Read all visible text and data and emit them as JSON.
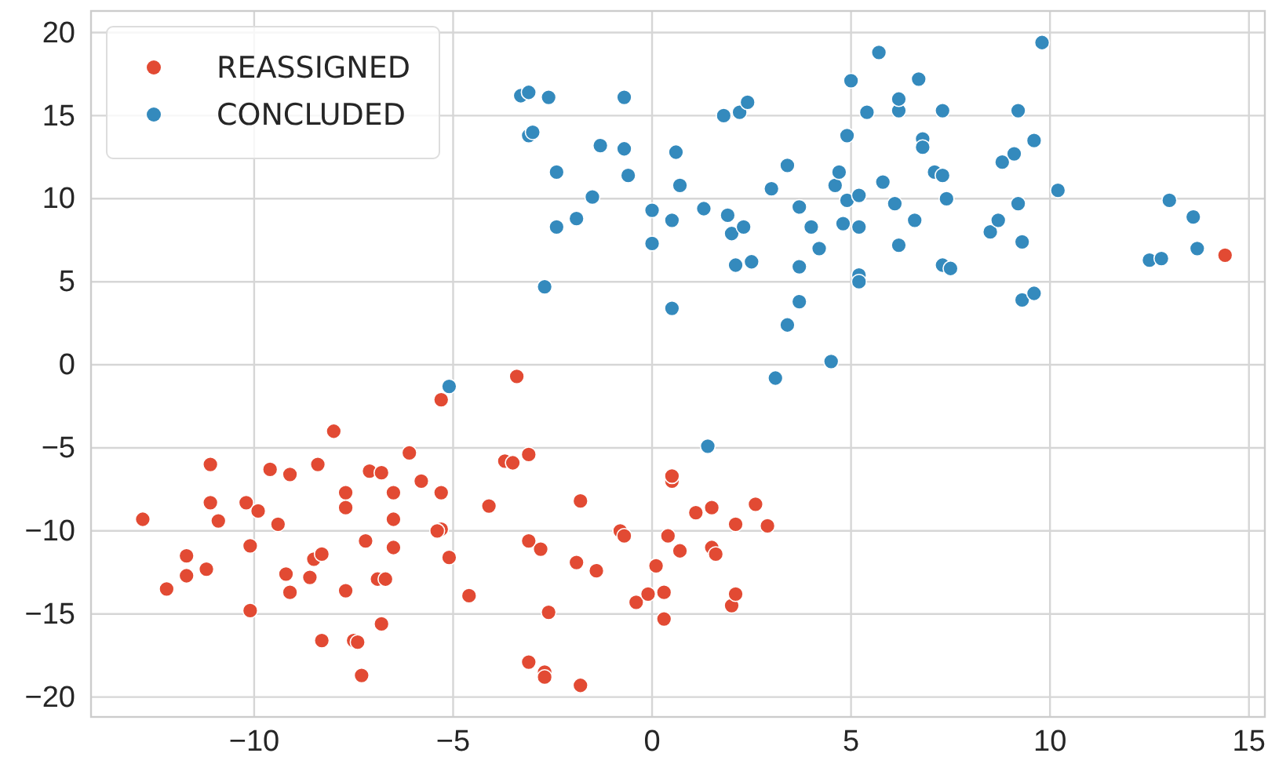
{
  "chart_data": {
    "type": "scatter",
    "xlim": [
      -14.1,
      15.4
    ],
    "ylim": [
      -21.2,
      21.3
    ],
    "xticks": [
      {
        "value": -10,
        "label": "−10"
      },
      {
        "value": -5,
        "label": "−5"
      },
      0,
      5,
      10,
      15
    ],
    "yticks": [
      {
        "value": -20,
        "label": "−20"
      },
      {
        "value": -15,
        "label": "−15"
      },
      {
        "value": -10,
        "label": "−10"
      },
      {
        "value": -5,
        "label": "−5"
      },
      0,
      5,
      10,
      15,
      20
    ],
    "grid": true,
    "legend": "top left",
    "marker": "circle",
    "series": [
      {
        "name": "REASSIGNED",
        "color": "#e24a33",
        "x": [
          -3.4,
          -12.8,
          -12.2,
          -11.7,
          -11.7,
          -11.2,
          -11.1,
          -11.1,
          -10.9,
          -10.2,
          -10.1,
          -10.1,
          -9.9,
          -9.6,
          -9.4,
          -9.2,
          -9.1,
          -9.1,
          -8.6,
          -8.5,
          -8.3,
          -8.4,
          -8.3,
          -8.0,
          -7.7,
          -7.7,
          -7.7,
          -7.5,
          -7.4,
          -7.3,
          -7.2,
          -7.1,
          -6.8,
          -6.9,
          -6.7,
          -6.8,
          -6.5,
          -6.5,
          -6.5,
          -6.1,
          -5.8,
          -5.3,
          -5.4,
          -5.3,
          -5.3,
          -5.1,
          -4.6,
          -4.1,
          -3.7,
          -3.5,
          -3.1,
          -3.1,
          -2.8,
          -2.6,
          -3.1,
          -2.7,
          -2.7,
          -1.8,
          -1.8,
          -1.9,
          -1.4,
          -0.8,
          -0.7,
          -0.4,
          -0.1,
          0.3,
          0.3,
          0.1,
          0.4,
          0.7,
          0.5,
          0.5,
          1.1,
          1.5,
          1.5,
          1.6,
          2.1,
          2.0,
          2.1,
          2.6,
          2.9,
          14.4
        ],
        "values": [
          -0.7,
          -9.3,
          -13.5,
          -11.5,
          -12.7,
          -12.3,
          -6.0,
          -8.3,
          -9.4,
          -8.3,
          -10.9,
          -14.8,
          -8.8,
          -6.3,
          -9.6,
          -12.6,
          -6.6,
          -13.7,
          -12.8,
          -11.7,
          -11.4,
          -6.0,
          -16.6,
          -4.0,
          -7.7,
          -8.6,
          -13.6,
          -16.6,
          -16.7,
          -18.7,
          -10.6,
          -6.4,
          -6.5,
          -12.9,
          -12.9,
          -15.6,
          -7.7,
          -9.3,
          -11.0,
          -5.3,
          -7.0,
          -9.9,
          -10.0,
          -7.7,
          -2.1,
          -11.6,
          -13.9,
          -8.5,
          -5.8,
          -5.9,
          -5.4,
          -10.6,
          -11.1,
          -14.9,
          -17.9,
          -18.5,
          -18.8,
          -19.3,
          -8.2,
          -11.9,
          -12.4,
          -10.0,
          -10.3,
          -14.3,
          -13.8,
          -13.7,
          -15.3,
          -12.1,
          -10.3,
          -11.2,
          -7.0,
          -6.7,
          -8.9,
          -8.6,
          -11.0,
          -11.4,
          -9.6,
          -14.5,
          -13.8,
          -8.4,
          -9.7,
          6.6
        ]
      },
      {
        "name": "CONCLUDED",
        "color": "#348abd",
        "x": [
          -3.3,
          -3.1,
          -2.6,
          -3.1,
          -3.0,
          -2.4,
          -1.3,
          -1.5,
          -1.9,
          -2.4,
          -2.7,
          -0.7,
          -0.7,
          -0.6,
          -5.1,
          0.0,
          0.0,
          0.5,
          0.5,
          0.6,
          0.7,
          1.3,
          1.8,
          2.2,
          2.4,
          1.9,
          2.0,
          2.3,
          2.1,
          2.5,
          3.0,
          3.4,
          3.7,
          4.0,
          3.7,
          3.7,
          3.4,
          3.1,
          4.5,
          4.2,
          4.6,
          4.7,
          4.9,
          5.0,
          4.9,
          5.2,
          4.8,
          5.2,
          5.2,
          5.2,
          5.4,
          5.7,
          5.8,
          6.1,
          6.2,
          6.2,
          6.2,
          6.6,
          6.7,
          6.8,
          6.8,
          7.1,
          7.3,
          7.4,
          7.3,
          7.3,
          7.5,
          8.5,
          8.7,
          8.8,
          9.1,
          9.2,
          9.2,
          9.3,
          9.6,
          9.3,
          9.6,
          9.8,
          10.2,
          12.5,
          12.8,
          13.0,
          13.6,
          13.7,
          1.4
        ],
        "values": [
          16.2,
          16.4,
          16.1,
          13.8,
          14.0,
          11.6,
          13.2,
          10.1,
          8.8,
          8.3,
          4.7,
          16.1,
          13.0,
          11.4,
          -1.3,
          9.3,
          7.3,
          8.7,
          3.4,
          12.8,
          10.8,
          9.4,
          15.0,
          15.2,
          15.8,
          9.0,
          7.9,
          8.3,
          6.0,
          6.2,
          10.6,
          12.0,
          9.5,
          8.3,
          5.9,
          3.8,
          2.4,
          -0.8,
          0.2,
          7.0,
          10.8,
          11.6,
          13.8,
          17.1,
          9.9,
          10.2,
          8.5,
          8.3,
          5.4,
          5.0,
          15.2,
          18.8,
          11.0,
          9.7,
          7.2,
          15.3,
          16.0,
          8.7,
          17.2,
          13.6,
          13.1,
          11.6,
          11.4,
          10.0,
          15.3,
          6.0,
          5.8,
          8.0,
          8.7,
          12.2,
          12.7,
          15.3,
          9.7,
          7.4,
          13.5,
          3.9,
          4.3,
          19.4,
          10.5,
          6.3,
          6.4,
          9.9,
          8.9,
          7.0,
          -4.9
        ]
      }
    ]
  }
}
